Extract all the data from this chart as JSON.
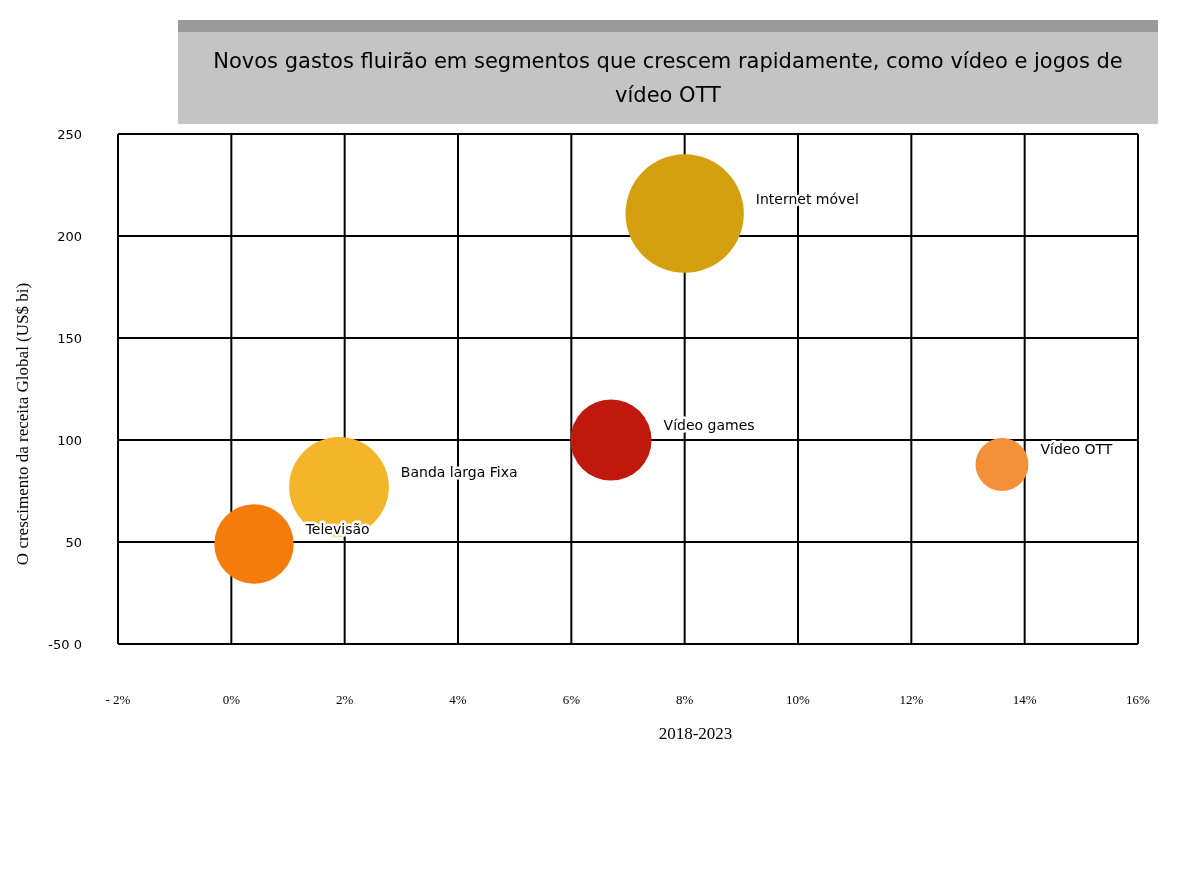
{
  "chart_data": {
    "type": "bubble",
    "title": "Novos gastos fluirão em segmentos que crescem rapidamente, como vídeo e jogos de vídeo OTT",
    "xlabel": "2018-2023",
    "ylabel": "O crescimento da receita Global (US$ bi)",
    "series": [
      {
        "name": "Televisão",
        "color": "#f57c0a",
        "x": [
          0.4
        ],
        "values": [
          49
        ],
        "sizes": [
          0.45
        ]
      },
      {
        "name": "Banda larga Fixa",
        "color": "#f5b52a",
        "x": [
          1.9
        ],
        "values": [
          77
        ],
        "sizes": [
          0.71
        ]
      },
      {
        "name": "Vídeo games",
        "color": "#c0180c",
        "x": [
          6.7
        ],
        "values": [
          100
        ],
        "sizes": [
          0.47
        ]
      },
      {
        "name": "Internet móvel",
        "color": "#d4a010",
        "x": [
          8.0
        ],
        "values": [
          211
        ],
        "sizes": [
          1
        ]
      },
      {
        "name": "Vídeo OTT",
        "color": "#f5903a",
        "x": [
          13.6
        ],
        "values": [
          88
        ],
        "sizes": [
          0.2
        ]
      }
    ],
    "xlim": [
      -2,
      16
    ],
    "xticks": [
      {
        "value": -2,
        "label": "- 2%"
      },
      {
        "value": 0,
        "label": "0%"
      },
      {
        "value": 2,
        "label": "2%"
      },
      {
        "value": 4,
        "label": "4%"
      },
      {
        "value": 6,
        "label": "6%"
      },
      {
        "value": 8,
        "label": "8%"
      },
      {
        "value": 10,
        "label": "10%"
      },
      {
        "value": 12,
        "label": "12%"
      },
      {
        "value": 14,
        "label": "14%"
      },
      {
        "value": 16,
        "label": "16%"
      }
    ],
    "ylim": [
      0,
      250
    ],
    "yticks": [
      {
        "value": 0,
        "label": "-50 0"
      },
      50,
      100,
      150,
      200,
      250
    ],
    "grid": true
  }
}
